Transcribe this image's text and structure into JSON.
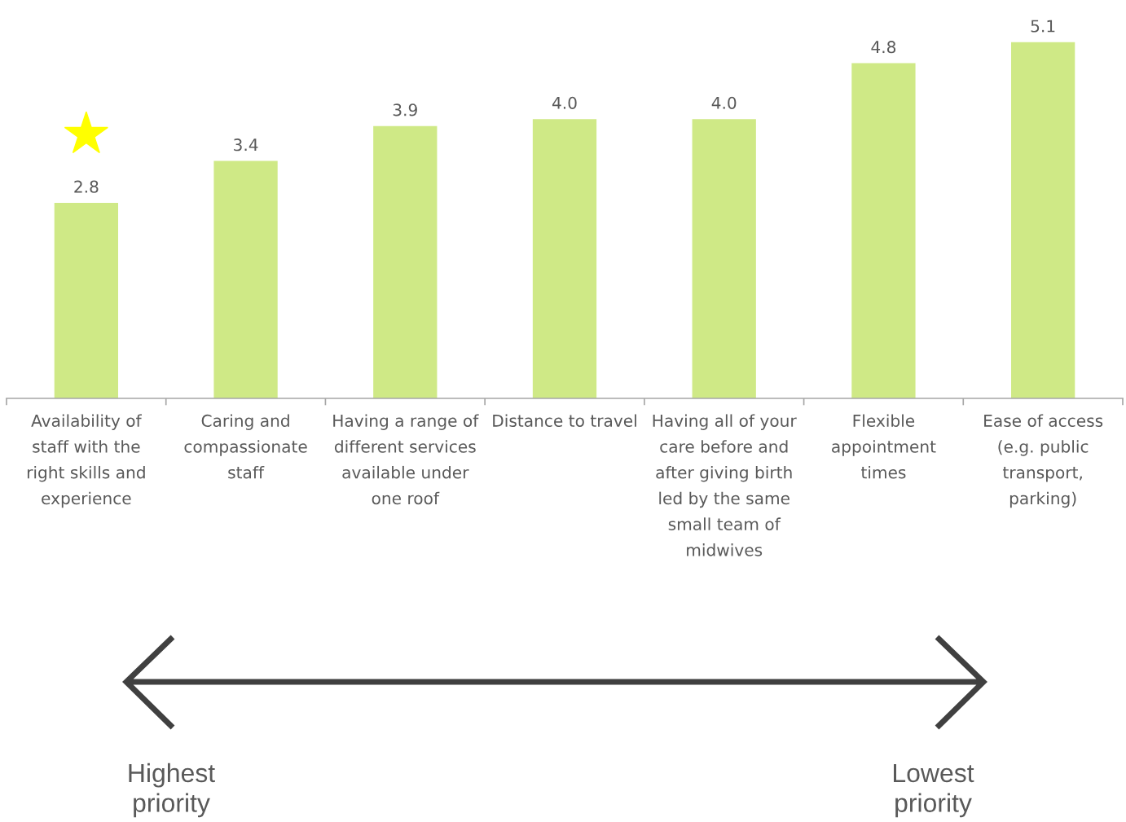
{
  "chart_data": {
    "type": "bar",
    "categories": [
      "Availability of\nstaff with the\nright skills and\nexperience",
      "Caring and\ncompassionate\nstaff",
      "Having a range of\ndifferent services\navailable under\none roof",
      "Distance to travel",
      "Having all of your\ncare before and\nafter giving birth\nled by the same\nsmall team of\nmidwives",
      "Flexible\nappointment\ntimes",
      "Ease of access\n(e.g. public\ntransport,\nparking)"
    ],
    "values": [
      2.8,
      3.4,
      3.9,
      4.0,
      4.0,
      4.8,
      5.1
    ],
    "value_labels": [
      "2.8",
      "3.4",
      "3.9",
      "4.0",
      "4.0",
      "4.8",
      "5.1"
    ],
    "color": "#cfe986",
    "annotations": [
      "Highest\npriority",
      "Lowest\npriority"
    ]
  }
}
